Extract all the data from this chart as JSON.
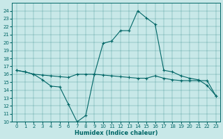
{
  "xlabel": "Humidex (Indice chaleur)",
  "bg_color": "#c8e8e8",
  "line_color": "#006666",
  "xlim": [
    -0.5,
    23.5
  ],
  "ylim": [
    10,
    25
  ],
  "yticks": [
    10,
    11,
    12,
    13,
    14,
    15,
    16,
    17,
    18,
    19,
    20,
    21,
    22,
    23,
    24
  ],
  "xticks": [
    0,
    1,
    2,
    3,
    4,
    5,
    6,
    7,
    8,
    9,
    10,
    11,
    12,
    13,
    14,
    15,
    16,
    17,
    18,
    19,
    20,
    21,
    22,
    23
  ],
  "curve1_x": [
    0,
    1,
    2,
    3,
    4,
    5,
    6,
    7,
    8,
    9,
    10,
    11,
    12,
    13,
    14,
    15,
    16,
    17,
    18,
    19,
    20,
    21,
    22,
    23
  ],
  "curve1_y": [
    16.5,
    16.3,
    16.0,
    15.9,
    15.8,
    15.7,
    15.6,
    16.0,
    16.0,
    16.0,
    15.9,
    15.8,
    15.7,
    15.6,
    15.5,
    15.5,
    15.8,
    15.5,
    15.3,
    15.2,
    15.2,
    15.2,
    15.2,
    13.3
  ],
  "curve2_x": [
    0,
    1,
    2,
    3,
    4,
    5,
    6,
    7,
    8,
    9,
    10,
    11,
    12,
    13,
    14,
    15,
    16,
    17,
    18,
    19,
    20,
    21,
    22,
    23
  ],
  "curve2_y": [
    16.5,
    16.3,
    16.0,
    15.3,
    14.5,
    14.4,
    12.2,
    10.0,
    10.8,
    16.0,
    19.9,
    20.2,
    21.5,
    21.5,
    24.0,
    23.1,
    22.3,
    16.5,
    16.3,
    15.8,
    15.5,
    15.3,
    14.6,
    13.3
  ]
}
